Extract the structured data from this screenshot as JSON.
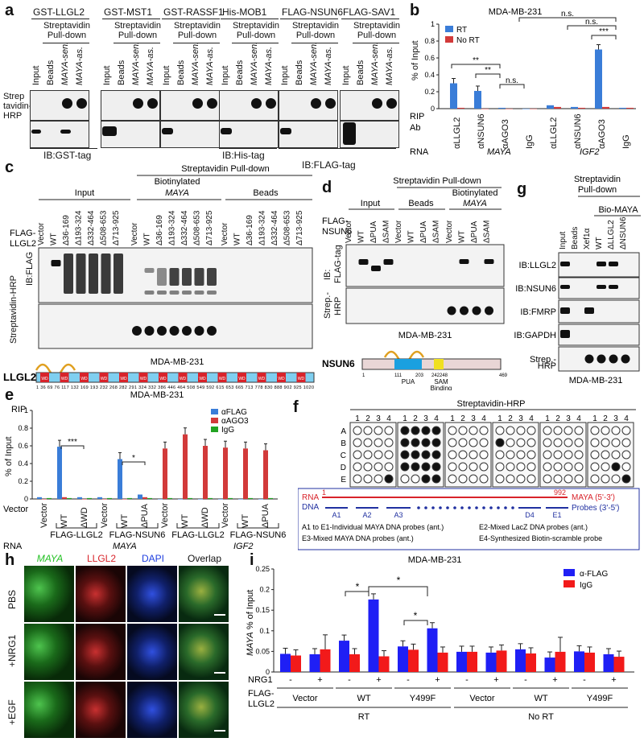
{
  "panel_a": {
    "label": "a",
    "proteins": [
      "GST-LLGL2",
      "GST-MST1",
      "GST-RASSF1",
      "His-MOB1",
      "FLAG-NSUN6",
      "FLAG-SAV1"
    ],
    "subheader": "Streptavidin Pull-down",
    "lanes": [
      "Input",
      "Beads",
      "MAYA-sen.",
      "MAYA-as."
    ],
    "row1": "Strep tavidin-HRP",
    "ib": [
      "IB:GST-tag",
      "IB:His-tag",
      "IB:FLAG-tag"
    ]
  },
  "panel_b": {
    "label": "b",
    "title": "MDA-MB-231",
    "ylabel": "% of Input",
    "legend": [
      "RT",
      "No RT"
    ],
    "sig": [
      "**",
      "**",
      "n.s.",
      "n.s.",
      "n.s.",
      "***"
    ],
    "rip_label": "RIP",
    "ab_label": "Ab",
    "abs": [
      "αLLGL2",
      "αNSUN6",
      "αAGO3",
      "IgG",
      "αLLGL2",
      "αNSUN6",
      "αAGO3",
      "IgG"
    ],
    "rna_label": "RNA",
    "rna": [
      "MAYA",
      "IGF2"
    ]
  },
  "chart_data": [
    {
      "type": "bar",
      "title": "MDA-MB-231",
      "ylabel": "% of Input",
      "ylim": [
        0,
        1
      ],
      "categories": [
        "αLLGL2",
        "αNSUN6",
        "αAGO3",
        "IgG",
        "αLLGL2",
        "αNSUN6",
        "αAGO3",
        "IgG"
      ],
      "series": [
        {
          "name": "RT",
          "values": [
            0.3,
            0.21,
            0.01,
            0.0,
            0.04,
            0.02,
            0.7,
            0.01
          ]
        },
        {
          "name": "No RT",
          "values": [
            0.01,
            0.0,
            0.0,
            0.0,
            0.02,
            0.01,
            0.02,
            0.01
          ]
        }
      ]
    },
    {
      "type": "bar",
      "title": "MDA-MB-231",
      "ylabel": "% of Input",
      "ylim": [
        0,
        1
      ],
      "categories": [
        "Vector",
        "WT",
        "ΔWD",
        "Vector",
        "WT",
        "ΔPUA",
        "Vector",
        "WT",
        "ΔWD",
        "Vector",
        "WT",
        "ΔPUA"
      ],
      "series": [
        {
          "name": "αFLAG",
          "values": [
            0.02,
            0.59,
            0.02,
            0.02,
            0.45,
            0.05,
            0.0,
            0.0,
            0.0,
            0.0,
            0.0,
            0.0
          ]
        },
        {
          "name": "αAGO3",
          "values": [
            0.0,
            0.02,
            0.0,
            0.0,
            0.0,
            0.02,
            0.57,
            0.73,
            0.6,
            0.58,
            0.57,
            0.55
          ]
        },
        {
          "name": "IgG",
          "values": [
            0.01,
            0.01,
            0.01,
            0.01,
            0.01,
            0.01,
            0.01,
            0.01,
            0.01,
            0.01,
            0.01,
            0.01
          ]
        }
      ]
    },
    {
      "type": "bar",
      "title": "MDA-MB-231",
      "ylabel": "MAYA % of Input",
      "ylim": [
        0,
        0.25
      ],
      "categories": [
        "Vector -",
        "Vector +",
        "WT -",
        "WT +",
        "Y499F -",
        "Y499F +",
        "Vector -",
        "Vector +",
        "WT -",
        "WT +",
        "Y499F -",
        "Y499F +"
      ],
      "series": [
        {
          "name": "α-FLAG",
          "values": [
            0.044,
            0.043,
            0.076,
            0.176,
            0.062,
            0.106,
            0.049,
            0.047,
            0.055,
            0.035,
            0.05,
            0.043
          ]
        },
        {
          "name": "IgG",
          "values": [
            0.04,
            0.055,
            0.043,
            0.038,
            0.054,
            0.047,
            0.049,
            0.052,
            0.045,
            0.049,
            0.047,
            0.037
          ]
        }
      ]
    }
  ],
  "panel_c": {
    "label": "c",
    "header": "Streptavidin Pull-down",
    "groups": [
      "Input",
      "Biotinylated MAYA",
      "Beads"
    ],
    "row_label": "FLAG-LLGL2",
    "lanes": [
      "Vector",
      "WT",
      "Δ36-169",
      "Δ193-324",
      "Δ332-464",
      "Δ508-653",
      "Δ713-925"
    ],
    "blots": [
      "IB:FLAG",
      "Streptavidin-HRP"
    ],
    "cell": "MDA-MB-231",
    "domain_title": "LLGL2",
    "domain_numbers": "1 36 69 76 117 132 169 193 232 268 282 291 324 332 386 446 464 508 549 592 615 653 665 713 778 830 888 902 925 1020"
  },
  "panel_d": {
    "label": "d",
    "header": "Streptavidin Pull-down",
    "groups": [
      "Input",
      "Beads",
      "Biotinylated MAYA"
    ],
    "row_label": "FLAG-NSUN6",
    "lanes": [
      "Vector",
      "WT",
      "ΔPUA",
      "ΔSAM"
    ],
    "blots": [
      "IB: FLAG-tag",
      "Strep.- HRP"
    ],
    "cell": "MDA-MB-231",
    "domain_title": "NSUN6",
    "domain_marks": [
      "1",
      "111",
      "203",
      "242",
      "248",
      "469"
    ],
    "domain_names": [
      "PUA",
      "SAM Binding"
    ]
  },
  "panel_g": {
    "label": "g",
    "header": "Streptavidin Pull-down",
    "group": "Bio-MAYA",
    "lanes": [
      "Input",
      "Beads",
      "Xef1α",
      "WT",
      "ΔLLGL2",
      "ΔNSUN6"
    ],
    "blots": [
      "IB:LLGL2",
      "IB:NSUN6",
      "IB:FMRP",
      "IB:GAPDH",
      "Strep.- HRP"
    ],
    "cell": "MDA-MB-231"
  },
  "panel_e": {
    "label": "e",
    "rip": "RIP",
    "title": "MDA-MB-231",
    "ylabel": "% of Input",
    "legend": [
      "αFLAG",
      "αAGO3",
      "IgG"
    ],
    "sig": [
      "***",
      "*"
    ],
    "vector_label": "Vector",
    "lanes": [
      "Vector",
      "WT",
      "ΔWD",
      "Vector",
      "WT",
      "ΔPUA",
      "Vector",
      "WT",
      "ΔWD",
      "Vector",
      "WT",
      "ΔPUA"
    ],
    "groups": [
      "FLAG-LLGL2",
      "FLAG-NSUN6",
      "FLAG-LLGL2",
      "FLAG-NSUN6"
    ],
    "rna_label": "RNA",
    "rna": [
      "MAYA",
      "IGF2"
    ]
  },
  "panel_f": {
    "label": "f",
    "header": "Streptavidin-HRP",
    "cols": [
      "1",
      "2",
      "3",
      "4"
    ],
    "rows": [
      "A",
      "B",
      "C",
      "D",
      "E"
    ],
    "protein_label": "Protein",
    "proteins": [
      "-",
      "-",
      "GST",
      "GST-LLGL2",
      "FLAG-SAV1",
      "FLAG-NSUN6"
    ],
    "rna_label": "RNA",
    "rna": [
      "MAYA (as.)",
      "MAYA (sen.)"
    ],
    "legend": {
      "rna": "RNA",
      "dna": "DNA",
      "start": "1",
      "end": "992",
      "maya": "MAYA (5'-3')",
      "probes": "Probes (3'-5')",
      "probe_ids": [
        "A1",
        "A2",
        "A3",
        "D4",
        "E1"
      ],
      "notes": [
        "A1 to E1-Individual MAYA DNA probes (ant.)",
        "E2-Mixed LacZ DNA probes (ant.)",
        "E3-Mixed MAYA DNA probes (ant.)",
        "E4-Synthesized Biotin-scramble probe"
      ]
    }
  },
  "panel_h": {
    "label": "h",
    "channels": [
      "MAYA",
      "LLGL2",
      "DAPI",
      "Overlap"
    ],
    "conditions": [
      "PBS",
      "+NRG1",
      "+EGF"
    ]
  },
  "panel_i": {
    "label": "i",
    "title": "MDA-MB-231",
    "ylabel": "MAYA % of Input",
    "legend": [
      "α-FLAG",
      "IgG"
    ],
    "sig": [
      "*",
      "*",
      "*"
    ],
    "nrg1_label": "NRG1",
    "flag_label": "FLAG- LLGL2",
    "signs": [
      "-",
      "+",
      "-",
      "+",
      "-",
      "+",
      "-",
      "+",
      "-",
      "+",
      "-",
      "+"
    ],
    "groups": [
      "Vector",
      "WT",
      "Y499F",
      "Vector",
      "WT",
      "Y499F"
    ],
    "conditions": [
      "RT",
      "No RT"
    ]
  },
  "colors": {
    "blue": "#3a7dd8",
    "red": "#d23a3a",
    "green": "#22a322",
    "deep_blue": "#1f1ff5",
    "deep_red": "#f21a1a",
    "domain_red": "#d8232a",
    "domain_blue": "#7fcff0"
  }
}
